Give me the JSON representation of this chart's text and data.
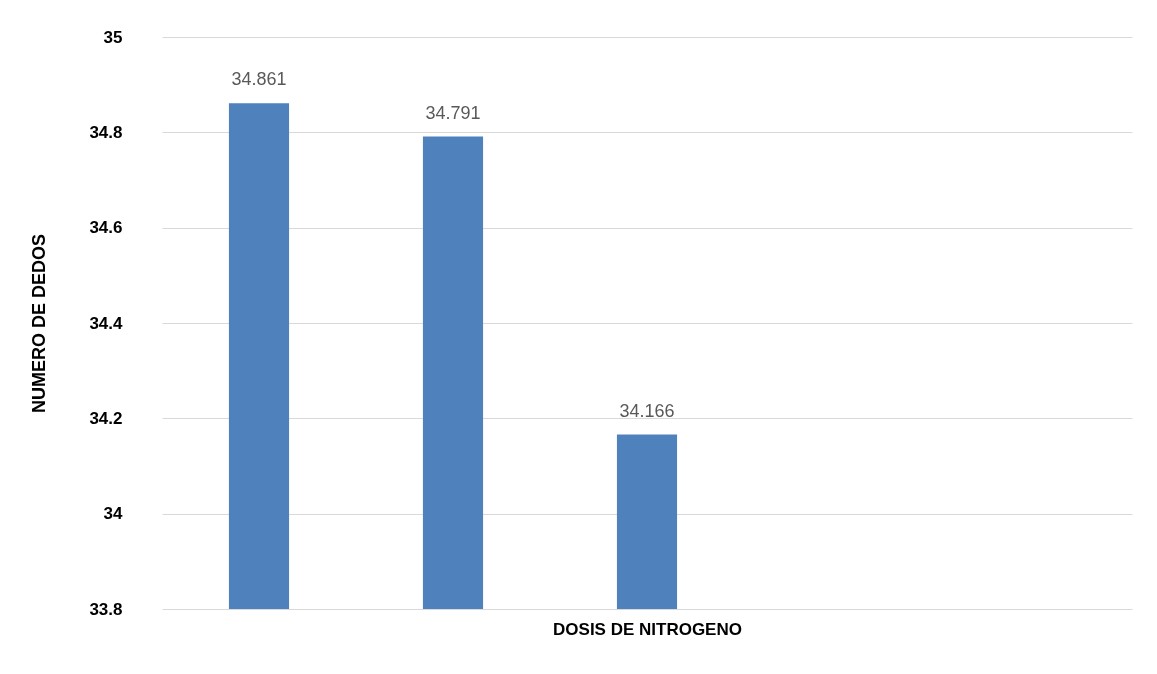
{
  "chart_data": {
    "type": "bar",
    "xlabel": "DOSIS DE NITROGENO",
    "ylabel": "NUMERO DE DEDOS",
    "categories": [
      null,
      null,
      null,
      null,
      null
    ],
    "values": [
      34.861,
      34.791,
      34.166,
      null,
      null
    ],
    "color": "#4f81bd",
    "ylim": [
      33.8,
      35
    ],
    "yticks": [
      33.8,
      34,
      34.2,
      34.4,
      34.6,
      34.8,
      35
    ],
    "grid": "y",
    "tick_labels": "y",
    "data_labels": true
  }
}
